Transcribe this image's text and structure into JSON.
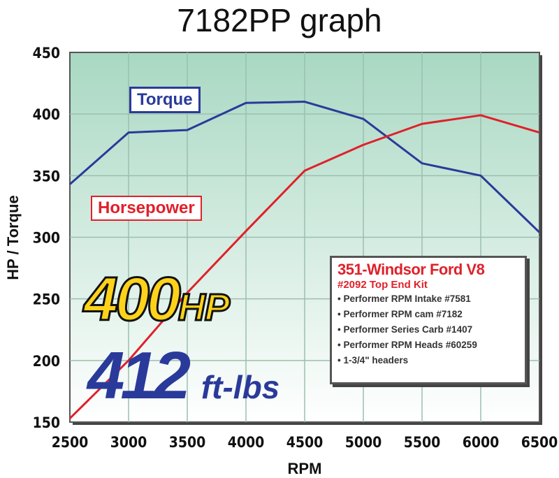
{
  "title": "7182PP graph",
  "chart_data": {
    "type": "line",
    "xlabel": "RPM",
    "ylabel": "HP / Torque",
    "xlim": [
      2500,
      6500
    ],
    "ylim": [
      150,
      450
    ],
    "grid": true,
    "x": [
      2500,
      3000,
      3500,
      4000,
      4500,
      5000,
      5500,
      6000,
      6500
    ],
    "xticks": [
      "2500",
      "3000",
      "3500",
      "4000",
      "4500",
      "5000",
      "5500",
      "6000",
      "6500"
    ],
    "yticks": [
      "150",
      "200",
      "250",
      "300",
      "350",
      "400",
      "450"
    ],
    "series": [
      {
        "name": "Torque",
        "color": "#2a3a9a",
        "values": [
          343,
          385,
          387,
          409,
          410,
          396,
          360,
          350,
          304
        ]
      },
      {
        "name": "Horsepower",
        "color": "#e0202a",
        "values": [
          153,
          200,
          255,
          305,
          354,
          375,
          392,
          399,
          385
        ]
      }
    ],
    "background": [
      "#a8d8c2",
      "#ffffff"
    ]
  },
  "callouts": {
    "hp_value": "400",
    "hp_unit": "HP",
    "torque_value": "412",
    "torque_unit": "ft-lbs"
  },
  "infobox": {
    "title": "351-Windsor Ford V8",
    "subtitle": "#2092 Top End Kit",
    "items": [
      "• Performer RPM Intake #7581",
      "• Performer RPM cam #7182",
      "• Performer Series Carb #1407",
      "• Performer RPM Heads #60259",
      "• 1-3/4\" headers"
    ]
  }
}
